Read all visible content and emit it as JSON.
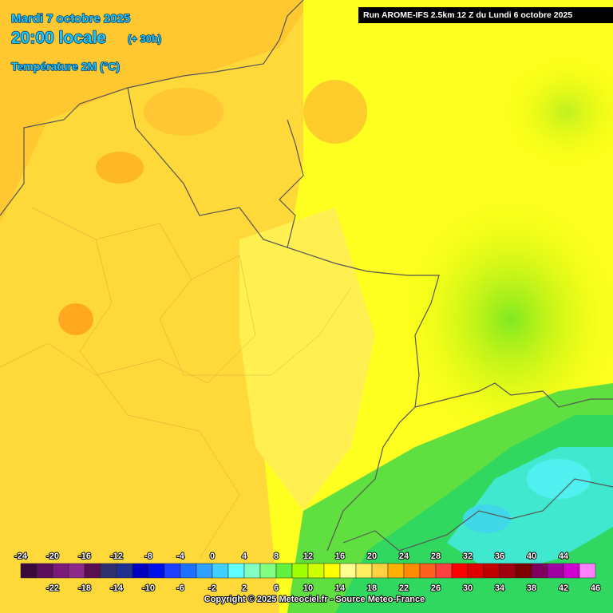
{
  "header": {
    "date": "Mardi 7 octobre 2025",
    "time": "20:00 locale",
    "lead": "(+ 30h)",
    "variable": "Température 2M (°C)"
  },
  "run": "Run AROME-IFS 2.5km 12 Z du Lundi 6 octobre 2025",
  "legend": {
    "ticks": [
      -24,
      -22,
      -20,
      -18,
      -16,
      -14,
      -12,
      -10,
      -8,
      -6,
      -4,
      -2,
      0,
      2,
      4,
      6,
      8,
      10,
      12,
      14,
      16,
      18,
      20,
      22,
      24,
      26,
      28,
      30,
      32,
      34,
      36,
      38,
      40,
      42,
      44,
      46
    ],
    "colors": [
      "#3a0a3a",
      "#5a105a",
      "#7a1a7a",
      "#8c2a8c",
      "#5a1050",
      "#303070",
      "#203090",
      "#0000c0",
      "#0010e8",
      "#2040ff",
      "#2070ff",
      "#30a0ff",
      "#40d0ff",
      "#60ffff",
      "#80ffc0",
      "#80ff80",
      "#60f040",
      "#a0ff00",
      "#d0ff00",
      "#ffff00",
      "#ffff90",
      "#ffef60",
      "#ffd040",
      "#ffb000",
      "#ff8c00",
      "#ff6020",
      "#ff4040",
      "#ff0000",
      "#e00000",
      "#c00000",
      "#a00010",
      "#800000",
      "#800060",
      "#a000a0",
      "#d000d0",
      "#ff80ff"
    ]
  },
  "copyright": "Copyright © 2025 Meteociel.fr - Source Meteo-France"
}
